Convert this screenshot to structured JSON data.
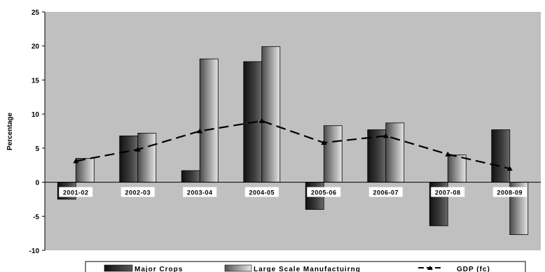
{
  "chart_data": {
    "type": "bar",
    "categories": [
      "2001-02",
      "2002-03",
      "2003-04",
      "2004-05",
      "2005-06",
      "2006-07",
      "2007-08",
      "2008-09"
    ],
    "series": [
      {
        "name": "Major Crops",
        "kind": "bar",
        "values": [
          -2.5,
          6.8,
          1.7,
          17.7,
          -4.0,
          7.7,
          -6.4,
          7.7
        ],
        "color": "#2b2b2b"
      },
      {
        "name": "Large Scale Manufactuirng",
        "kind": "bar",
        "values": [
          3.5,
          7.2,
          18.1,
          19.9,
          8.3,
          8.7,
          4.0,
          -7.7
        ],
        "color": "#8c8c8c"
      },
      {
        "name": "GDP (fc)",
        "kind": "line",
        "style": "dashed",
        "values": [
          3.1,
          4.8,
          7.5,
          9.0,
          5.8,
          6.8,
          4.1,
          2.0
        ],
        "color": "#000000"
      }
    ],
    "ylabel": "Percentage",
    "xlabel": "",
    "ylim": [
      -10,
      25
    ],
    "yticks": [
      -10,
      -5,
      0,
      5,
      10,
      15,
      20,
      25
    ],
    "ytick_labels": [
      "-10",
      "-5",
      "0",
      "5",
      "10",
      "15",
      "20",
      "25"
    ],
    "grid": false,
    "legend_position": "bottom",
    "plot_background": "#c0c0c0"
  }
}
